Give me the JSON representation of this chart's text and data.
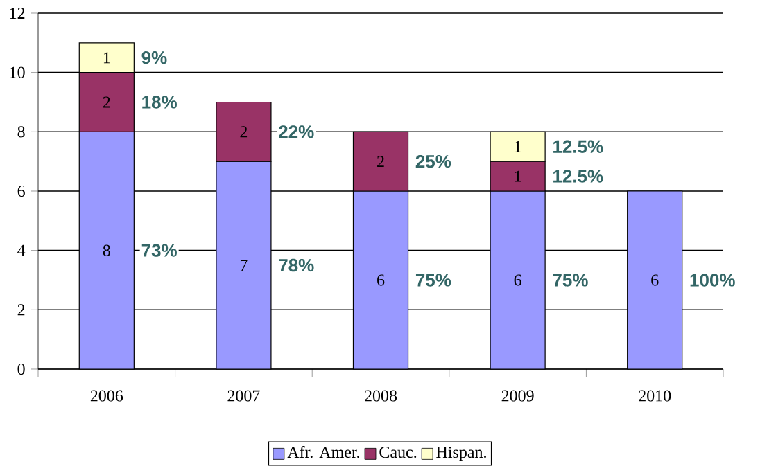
{
  "chart_data": {
    "type": "bar",
    "stacked": true,
    "categories": [
      "2006",
      "2007",
      "2008",
      "2009",
      "2010"
    ],
    "series": [
      {
        "name": "Afr. Amer.",
        "color": "#9999ff",
        "values": [
          8,
          7,
          6,
          6,
          6
        ],
        "value_labels": [
          "8",
          "7",
          "6",
          "6",
          "6"
        ]
      },
      {
        "name": "Cauc.",
        "color": "#993366",
        "values": [
          2,
          2,
          2,
          1,
          null
        ],
        "value_labels": [
          "2",
          "2",
          "2",
          "1",
          null
        ]
      },
      {
        "name": "Hispan.",
        "color": "#ffffcc",
        "values": [
          1,
          null,
          null,
          1,
          null
        ],
        "value_labels": [
          "1",
          null,
          null,
          "1",
          null
        ]
      }
    ],
    "ylim": [
      0,
      12
    ],
    "yticks": [
      0,
      2,
      4,
      6,
      8,
      10,
      12
    ],
    "grid": "y",
    "legend": "bottom",
    "annotations": [
      "73%",
      "18%",
      "9%",
      "78%",
      "22%",
      "75%",
      "25%",
      "75%",
      "12.5%",
      "12.5%",
      "100%"
    ]
  }
}
